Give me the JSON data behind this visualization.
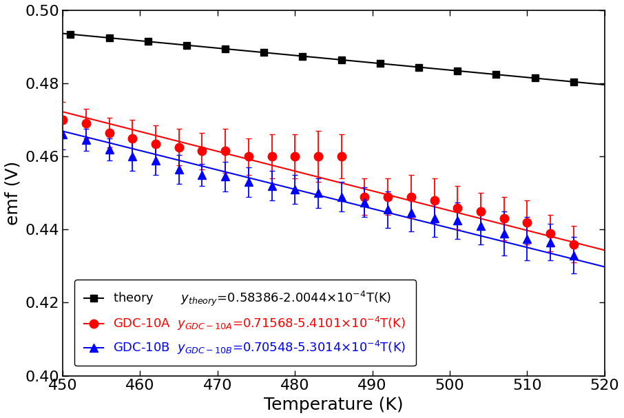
{
  "title": "",
  "xlabel": "Temperature (K)",
  "ylabel": "emf (V)",
  "xlim": [
    450,
    520
  ],
  "ylim": [
    0.4,
    0.5
  ],
  "yticks": [
    0.4,
    0.42,
    0.44,
    0.46,
    0.48,
    0.5
  ],
  "xticks": [
    450,
    460,
    470,
    480,
    490,
    500,
    510,
    520
  ],
  "theory": {
    "intercept": 0.58386,
    "slope": -0.00020044,
    "color": "#000000",
    "label": "theory",
    "eq_label": "y$_{theory}$=0.58386-2.0044×10$^{-4}$T(K)"
  },
  "gdc10a": {
    "intercept": 0.71568,
    "slope": -0.00054101,
    "color": "#ff0000",
    "label": "GDC-10A",
    "eq_label": "y$_{GDC-10A}$=0.71568-5.4101×10$^{-4}$T(K)",
    "data_x": [
      450,
      453,
      456,
      459,
      462,
      465,
      468,
      471,
      474,
      477,
      480,
      483,
      486,
      489,
      492,
      495,
      498,
      501,
      504,
      507,
      510,
      513,
      516
    ],
    "data_y": [
      0.47,
      0.469,
      0.4665,
      0.465,
      0.4635,
      0.4625,
      0.4615,
      0.4615,
      0.46,
      0.46,
      0.46,
      0.46,
      0.46,
      0.449,
      0.449,
      0.449,
      0.448,
      0.446,
      0.445,
      0.443,
      0.442,
      0.439,
      0.436
    ],
    "data_yerr": [
      0.005,
      0.004,
      0.004,
      0.005,
      0.005,
      0.005,
      0.005,
      0.006,
      0.005,
      0.006,
      0.006,
      0.007,
      0.006,
      0.005,
      0.005,
      0.006,
      0.006,
      0.006,
      0.005,
      0.006,
      0.006,
      0.005,
      0.005
    ]
  },
  "gdc10b": {
    "intercept": 0.70548,
    "slope": -0.00053014,
    "color": "#0000ff",
    "label": "GDC-10B",
    "eq_label": "y$_{GDC-10B}$=0.70548-5.3014×10$^{-4}$T(K)",
    "data_x": [
      450,
      453,
      456,
      459,
      462,
      465,
      468,
      471,
      474,
      477,
      480,
      483,
      486,
      489,
      492,
      495,
      498,
      501,
      504,
      507,
      510,
      513,
      516
    ],
    "data_y": [
      0.466,
      0.4645,
      0.462,
      0.46,
      0.459,
      0.4565,
      0.455,
      0.4545,
      0.453,
      0.452,
      0.451,
      0.45,
      0.449,
      0.4475,
      0.4455,
      0.4445,
      0.443,
      0.4425,
      0.441,
      0.439,
      0.4375,
      0.4365,
      0.433
    ],
    "data_yerr": [
      0.004,
      0.003,
      0.003,
      0.004,
      0.004,
      0.004,
      0.003,
      0.004,
      0.004,
      0.004,
      0.004,
      0.004,
      0.004,
      0.004,
      0.005,
      0.005,
      0.005,
      0.005,
      0.005,
      0.006,
      0.006,
      0.005,
      0.005
    ]
  },
  "background_color": "white",
  "axis_fontsize": 18,
  "tick_fontsize": 16,
  "legend_fontsize": 13
}
